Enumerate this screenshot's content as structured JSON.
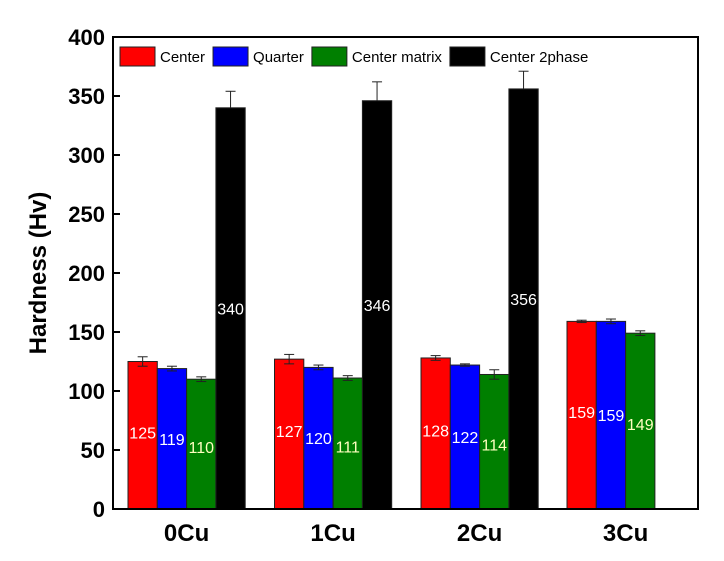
{
  "chart_data": {
    "type": "bar",
    "title": "",
    "xlabel": "",
    "ylabel": "Hardness (Hv)",
    "ylim": [
      0,
      400
    ],
    "yticks": [
      0,
      50,
      100,
      150,
      200,
      250,
      300,
      350,
      400
    ],
    "grid": false,
    "legend_position": "top",
    "categories": [
      "0Cu",
      "1Cu",
      "2Cu",
      "3Cu"
    ],
    "series": [
      {
        "name": "Center",
        "color": "#ff0000",
        "label_color": "#ffffff",
        "values": [
          125,
          127,
          128,
          159
        ],
        "errors": [
          4,
          4,
          2,
          1
        ],
        "labels": [
          "125",
          "127",
          "128",
          "159"
        ]
      },
      {
        "name": "Quarter",
        "color": "#0000ff",
        "label_color": "#ffffff",
        "values": [
          119,
          120,
          122,
          159
        ],
        "errors": [
          2,
          2,
          1,
          2
        ],
        "labels": [
          "119",
          "120",
          "122",
          "159"
        ]
      },
      {
        "name": "Center matrix",
        "color": "#007f00",
        "label_color": "#ffffc0",
        "values": [
          110,
          111,
          114,
          149
        ],
        "errors": [
          2,
          2,
          4,
          2
        ],
        "labels": [
          "110",
          "111",
          "114",
          "149"
        ]
      },
      {
        "name": "Center 2phase",
        "color": "#000000",
        "label_color": "#ffffff",
        "values": [
          340,
          346,
          356,
          null
        ],
        "errors": [
          14,
          16,
          15,
          null
        ],
        "labels": [
          "340",
          "346",
          "356",
          null
        ]
      }
    ]
  }
}
